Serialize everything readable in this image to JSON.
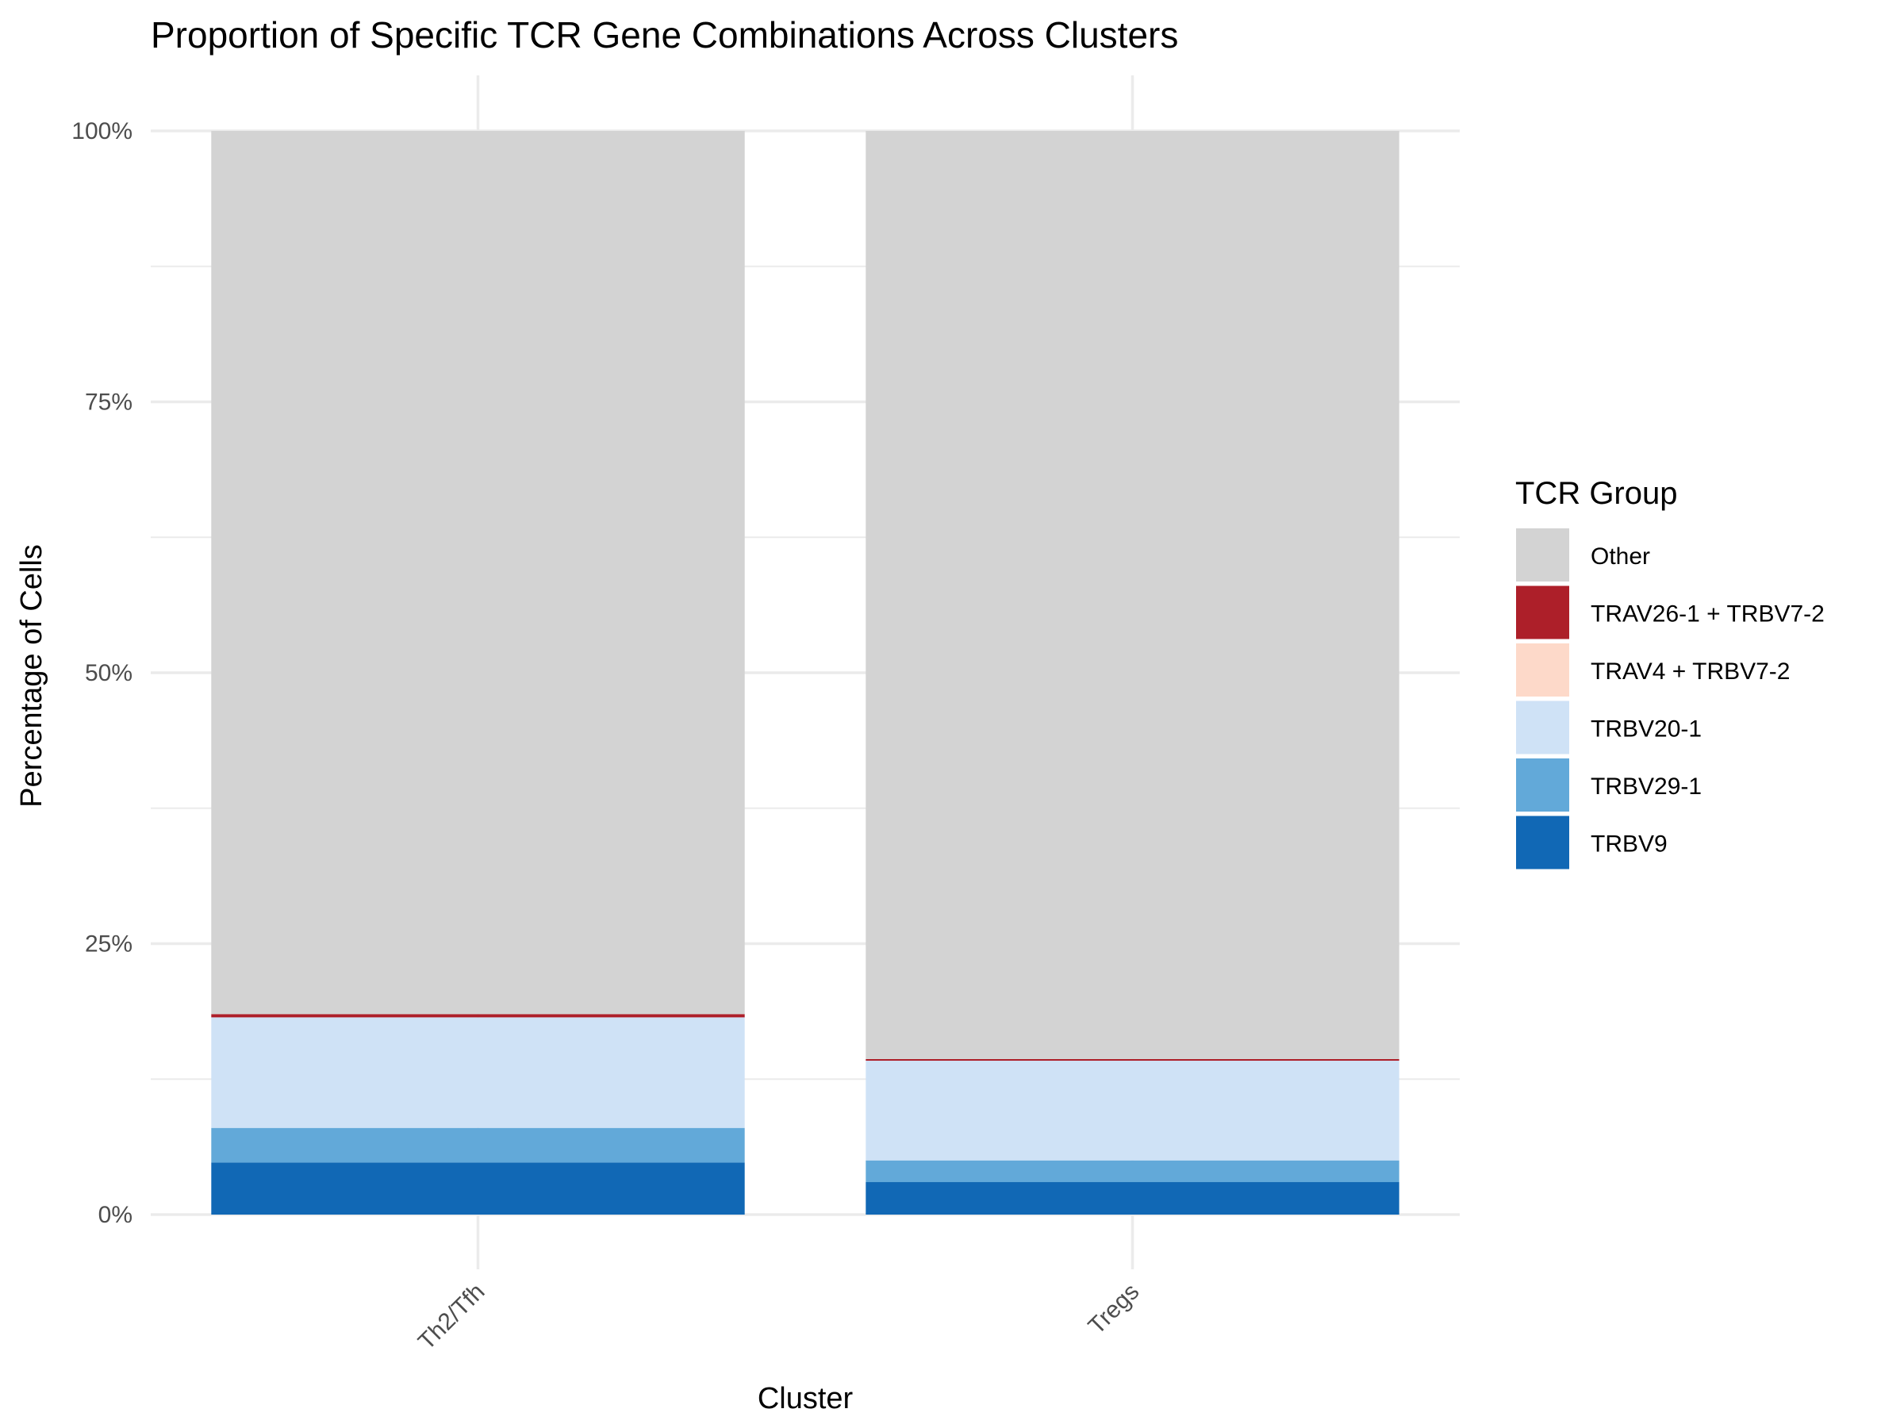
{
  "chart_data": {
    "type": "bar",
    "stacked": true,
    "title": "Proportion of Specific TCR Gene Combinations Across Clusters",
    "xlabel": "Cluster",
    "ylabel": "Percentage of Cells",
    "ylim": [
      0,
      100
    ],
    "y_ticks": [
      "0%",
      "25%",
      "50%",
      "75%",
      "100%"
    ],
    "y_tick_values": [
      0,
      25,
      50,
      75,
      100
    ],
    "grid": true,
    "legend_title": "TCR Group",
    "legend_position": "right",
    "categories": [
      "Th2/Tfh",
      "Tregs"
    ],
    "series": [
      {
        "name": "TRBV9",
        "color": "#1168B5",
        "values": [
          4.8,
          3.0
        ]
      },
      {
        "name": "TRBV29-1",
        "color": "#62A9D9",
        "values": [
          3.2,
          2.0
        ]
      },
      {
        "name": "TRBV20-1",
        "color": "#CFE2F6",
        "values": [
          10.2,
          9.2
        ]
      },
      {
        "name": "TRAV4 + TRBV7-2",
        "color": "#FDD9C9",
        "values": [
          0.0,
          0.0
        ]
      },
      {
        "name": "TRAV26-1 + TRBV7-2",
        "color": "#AD1F29",
        "values": [
          0.3,
          0.15
        ]
      },
      {
        "name": "Other",
        "color": "#D3D3D3",
        "values": [
          81.5,
          85.65
        ]
      }
    ],
    "legend_order": [
      "Other",
      "TRAV26-1 + TRBV7-2",
      "TRAV4 + TRBV7-2",
      "TRBV20-1",
      "TRBV29-1",
      "TRBV9"
    ]
  }
}
